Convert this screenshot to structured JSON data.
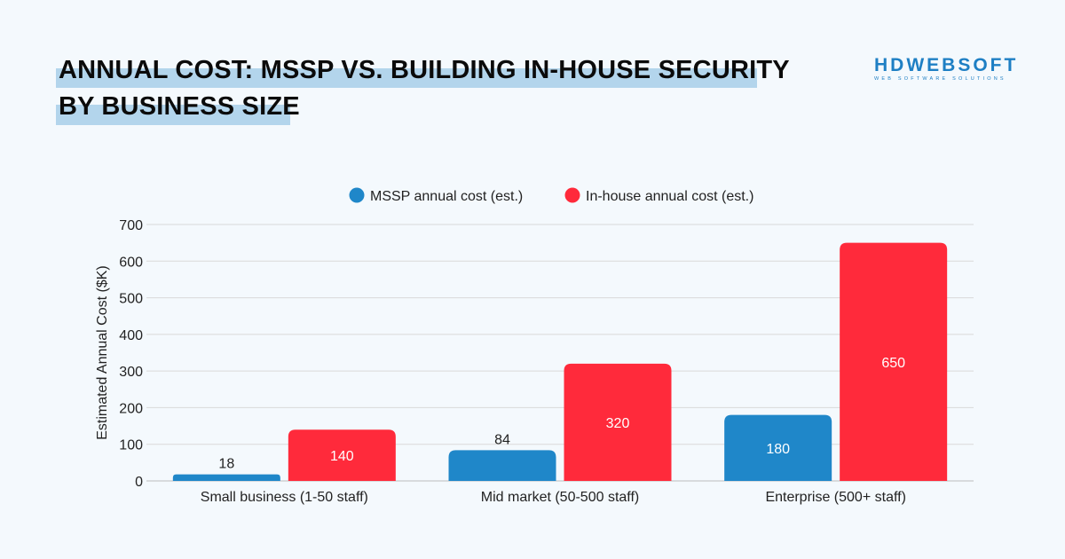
{
  "title": {
    "line1": "ANNUAL COST: MSSP VS. BUILDING IN-HOUSE SECURITY",
    "line2": "BY BUSINESS SIZE"
  },
  "logo": {
    "name": "HDWEBSOFT",
    "tagline": "WEB SOFTWARE SOLUTIONS"
  },
  "colors": {
    "mssp": "#1f87c9",
    "inhouse": "#ff2a3b",
    "highlight": "#b3d5ec"
  },
  "chart_data": {
    "type": "bar",
    "title": "ANNUAL COST: MSSP VS. BUILDING IN-HOUSE SECURITY BY BUSINESS SIZE",
    "xlabel": "",
    "ylabel": "Estimated Annual Cost ($K)",
    "ylim": [
      0,
      700
    ],
    "yticks": [
      0,
      100,
      200,
      300,
      400,
      500,
      600,
      700
    ],
    "grid": true,
    "legend": "top-center",
    "categories": [
      "Small business (1-50 staff)",
      "Mid market (50-500 staff)",
      "Enterprise (500+ staff)"
    ],
    "series": [
      {
        "name": "MSSP annual cost (est.)",
        "values": [
          18,
          84,
          180
        ],
        "color": "#1f87c9"
      },
      {
        "name": "In-house annual cost (est.)",
        "values": [
          140,
          320,
          650
        ],
        "color": "#ff2a3b"
      }
    ]
  }
}
